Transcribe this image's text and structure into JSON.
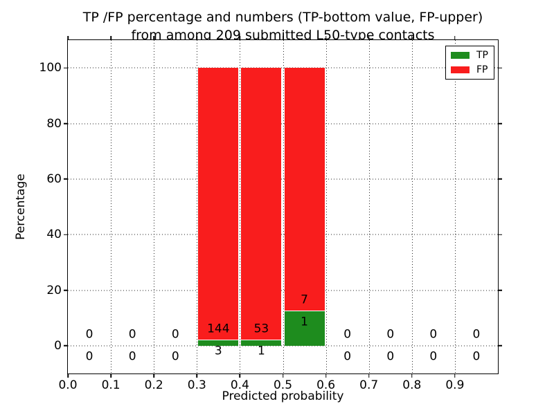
{
  "chart_data": {
    "type": "bar",
    "stacked": true,
    "title_lines": [
      "TP /FP percentage and numbers (TP-bottom value, FP-upper)",
      "from among 209 submitted L50-type contacts"
    ],
    "xlabel": "Predicted probability",
    "ylabel": "Percentage",
    "xlim": [
      0.0,
      1.0
    ],
    "ylim": [
      -10,
      110
    ],
    "xtick_labels": [
      "0.0",
      "0.1",
      "0.2",
      "0.3",
      "0.4",
      "0.5",
      "0.6",
      "0.7",
      "0.8",
      "0.9"
    ],
    "ytick_labels": [
      "0",
      "20",
      "40",
      "60",
      "80",
      "100"
    ],
    "grid": true,
    "grid_style": "dotted",
    "total_contacts": 209,
    "bin_width": 0.1,
    "bin_starts": [
      0.0,
      0.1,
      0.2,
      0.3,
      0.4,
      0.5,
      0.6,
      0.7,
      0.8,
      0.9
    ],
    "series": [
      {
        "name": "TP",
        "color": "#1e8c1e",
        "counts": [
          0,
          0,
          0,
          3,
          1,
          1,
          0,
          0,
          0,
          0
        ],
        "pct": [
          0,
          0,
          0,
          2.04,
          1.85,
          12.5,
          0,
          0,
          0,
          0
        ]
      },
      {
        "name": "FP",
        "color": "#f91d1d",
        "counts": [
          0,
          0,
          0,
          144,
          53,
          7,
          0,
          0,
          0,
          0
        ],
        "pct": [
          0,
          0,
          0,
          97.96,
          98.15,
          87.5,
          0,
          0,
          0,
          0
        ]
      }
    ],
    "legend": {
      "position": "upper right",
      "entries": [
        {
          "label": "TP",
          "color": "#1e8c1e"
        },
        {
          "label": "FP",
          "color": "#f91d1d"
        }
      ]
    }
  }
}
